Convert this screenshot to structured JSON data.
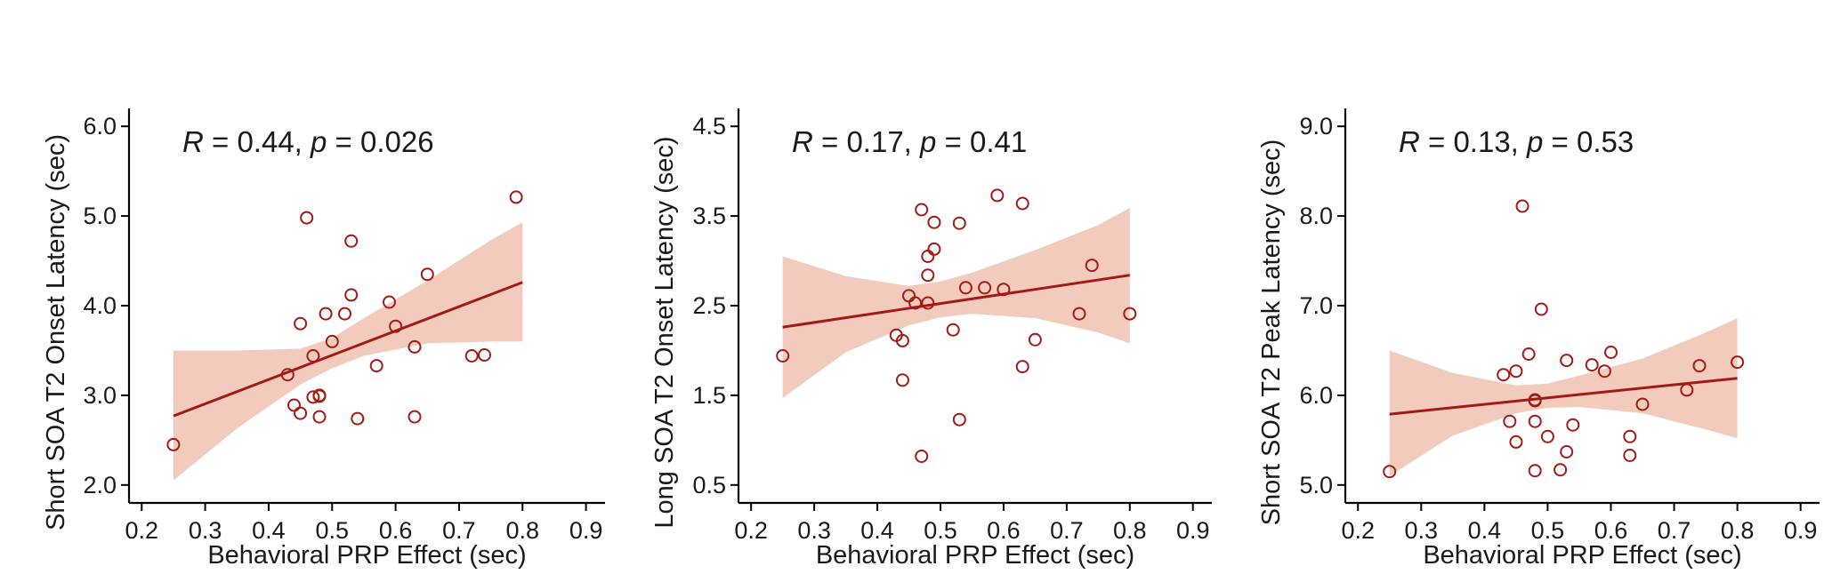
{
  "colors": {
    "line": "#a31a15",
    "band": "#f2cbbd",
    "point_stroke": "#a31a15",
    "axis": "#000000"
  },
  "chart_data": [
    {
      "type": "scatter",
      "annotation": {
        "r_label": "R",
        "r_value": " = 0.44, ",
        "p_label": "p",
        "p_value": " = 0.026"
      },
      "xlabel": "Behavioral PRP Effect (sec)",
      "ylabel": "Short SOA T2 Onset Latency (sec)",
      "xlim": [
        0.18,
        0.93
      ],
      "ylim": [
        1.8,
        6.2
      ],
      "xticks": [
        0.2,
        0.3,
        0.4,
        0.5,
        0.6,
        0.7,
        0.8,
        0.9
      ],
      "xtick_labels": [
        "0.2",
        "0.3",
        "0.4",
        "0.5",
        "0.6",
        "0.7",
        "0.8",
        "0.9"
      ],
      "yticks": [
        2.0,
        3.0,
        4.0,
        5.0,
        6.0
      ],
      "ytick_labels": [
        "2.0",
        "3.0",
        "4.0",
        "5.0",
        "6.0"
      ],
      "points": [
        [
          0.25,
          2.45
        ],
        [
          0.43,
          3.23
        ],
        [
          0.44,
          2.89
        ],
        [
          0.45,
          2.8
        ],
        [
          0.45,
          3.8
        ],
        [
          0.46,
          4.98
        ],
        [
          0.47,
          3.44
        ],
        [
          0.47,
          2.98
        ],
        [
          0.48,
          2.99
        ],
        [
          0.48,
          3.0
        ],
        [
          0.48,
          2.76
        ],
        [
          0.49,
          3.91
        ],
        [
          0.5,
          3.6
        ],
        [
          0.52,
          3.91
        ],
        [
          0.53,
          4.12
        ],
        [
          0.53,
          4.72
        ],
        [
          0.54,
          2.74
        ],
        [
          0.57,
          3.33
        ],
        [
          0.59,
          4.04
        ],
        [
          0.6,
          3.77
        ],
        [
          0.63,
          3.54
        ],
        [
          0.63,
          2.76
        ],
        [
          0.65,
          4.35
        ],
        [
          0.72,
          3.44
        ],
        [
          0.74,
          3.45
        ],
        [
          0.79,
          5.21
        ]
      ],
      "fit": {
        "x": [
          0.25,
          0.8
        ],
        "y": [
          2.77,
          4.26
        ]
      },
      "band": {
        "x": [
          0.25,
          0.35,
          0.45,
          0.5,
          0.55,
          0.65,
          0.75,
          0.8
        ],
        "lower": [
          2.05,
          2.63,
          3.12,
          3.3,
          3.44,
          3.58,
          3.6,
          3.6
        ],
        "upper": [
          3.5,
          3.5,
          3.52,
          3.64,
          3.86,
          4.28,
          4.73,
          4.93
        ]
      }
    },
    {
      "type": "scatter",
      "annotation": {
        "r_label": "R",
        "r_value": " = 0.17, ",
        "p_label": "p",
        "p_value": " = 0.41"
      },
      "xlabel": "Behavioral PRP Effect (sec)",
      "ylabel": "Long SOA T2 Onset Latency (sec)",
      "xlim": [
        0.18,
        0.93
      ],
      "ylim": [
        0.3,
        4.7
      ],
      "xticks": [
        0.2,
        0.3,
        0.4,
        0.5,
        0.6,
        0.7,
        0.8,
        0.9
      ],
      "xtick_labels": [
        "0.2",
        "0.3",
        "0.4",
        "0.5",
        "0.6",
        "0.7",
        "0.8",
        "0.9"
      ],
      "yticks": [
        0.5,
        1.5,
        2.5,
        3.5,
        4.5
      ],
      "ytick_labels": [
        "0.5",
        "1.5",
        "2.5",
        "3.5",
        "4.5"
      ],
      "points": [
        [
          0.25,
          1.94
        ],
        [
          0.43,
          2.17
        ],
        [
          0.44,
          1.67
        ],
        [
          0.44,
          2.11
        ],
        [
          0.45,
          2.61
        ],
        [
          0.46,
          2.53
        ],
        [
          0.47,
          3.57
        ],
        [
          0.47,
          0.82
        ],
        [
          0.48,
          3.05
        ],
        [
          0.48,
          2.84
        ],
        [
          0.48,
          2.53
        ],
        [
          0.49,
          3.13
        ],
        [
          0.49,
          3.43
        ],
        [
          0.52,
          2.23
        ],
        [
          0.53,
          3.42
        ],
        [
          0.53,
          1.23
        ],
        [
          0.54,
          2.7
        ],
        [
          0.57,
          2.7
        ],
        [
          0.59,
          3.73
        ],
        [
          0.6,
          2.68
        ],
        [
          0.63,
          3.64
        ],
        [
          0.63,
          1.82
        ],
        [
          0.65,
          2.12
        ],
        [
          0.72,
          2.41
        ],
        [
          0.74,
          2.95
        ],
        [
          0.8,
          2.41
        ]
      ],
      "fit": {
        "x": [
          0.25,
          0.8
        ],
        "y": [
          2.26,
          2.84
        ]
      },
      "band": {
        "x": [
          0.25,
          0.35,
          0.45,
          0.5,
          0.55,
          0.65,
          0.75,
          0.8
        ],
        "lower": [
          1.47,
          1.98,
          2.28,
          2.37,
          2.41,
          2.36,
          2.2,
          2.08
        ],
        "upper": [
          3.05,
          2.83,
          2.72,
          2.77,
          2.87,
          3.12,
          3.4,
          3.59
        ]
      }
    },
    {
      "type": "scatter",
      "annotation": {
        "r_label": "R",
        "r_value": " = 0.13, ",
        "p_label": "p",
        "p_value": " = 0.53"
      },
      "xlabel": "Behavioral PRP Effect (sec)",
      "ylabel": "Short SOA T2 Peak Latency (sec)",
      "xlim": [
        0.18,
        0.93
      ],
      "ylim": [
        4.8,
        9.2
      ],
      "xticks": [
        0.2,
        0.3,
        0.4,
        0.5,
        0.6,
        0.7,
        0.8,
        0.9
      ],
      "xtick_labels": [
        "0.2",
        "0.3",
        "0.4",
        "0.5",
        "0.6",
        "0.7",
        "0.8",
        "0.9"
      ],
      "yticks": [
        5.0,
        6.0,
        7.0,
        8.0,
        9.0
      ],
      "ytick_labels": [
        "5.0",
        "6.0",
        "7.0",
        "8.0",
        "9.0"
      ],
      "points": [
        [
          0.25,
          5.15
        ],
        [
          0.43,
          6.23
        ],
        [
          0.44,
          5.71
        ],
        [
          0.45,
          6.27
        ],
        [
          0.45,
          5.48
        ],
        [
          0.46,
          8.11
        ],
        [
          0.47,
          6.46
        ],
        [
          0.48,
          5.94
        ],
        [
          0.48,
          5.95
        ],
        [
          0.48,
          5.71
        ],
        [
          0.48,
          5.16
        ],
        [
          0.49,
          6.96
        ],
        [
          0.5,
          5.54
        ],
        [
          0.52,
          5.17
        ],
        [
          0.53,
          5.37
        ],
        [
          0.53,
          6.39
        ],
        [
          0.54,
          5.67
        ],
        [
          0.57,
          6.34
        ],
        [
          0.59,
          6.27
        ],
        [
          0.6,
          6.48
        ],
        [
          0.63,
          5.54
        ],
        [
          0.63,
          5.33
        ],
        [
          0.65,
          5.9
        ],
        [
          0.72,
          6.06
        ],
        [
          0.74,
          6.33
        ],
        [
          0.8,
          6.37
        ]
      ],
      "fit": {
        "x": [
          0.25,
          0.8
        ],
        "y": [
          5.79,
          6.19
        ]
      },
      "band": {
        "x": [
          0.25,
          0.35,
          0.45,
          0.5,
          0.55,
          0.65,
          0.75,
          0.8
        ],
        "lower": [
          5.1,
          5.55,
          5.8,
          5.86,
          5.87,
          5.8,
          5.62,
          5.52
        ],
        "upper": [
          6.5,
          6.25,
          6.11,
          6.13,
          6.22,
          6.41,
          6.7,
          6.86
        ]
      }
    }
  ]
}
